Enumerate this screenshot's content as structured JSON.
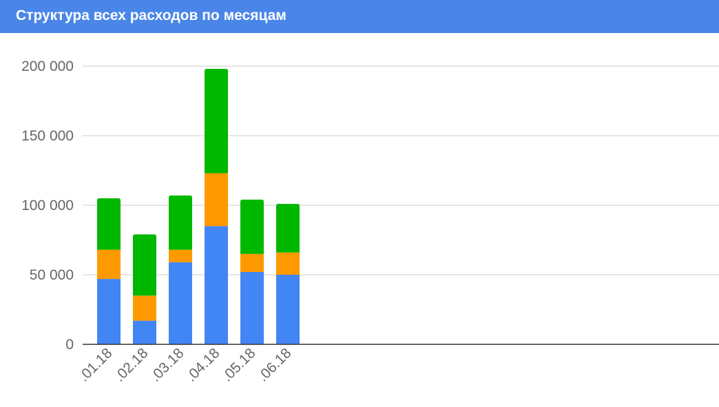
{
  "header": {
    "title": "Структура всех расходов по месяцам"
  },
  "colors": {
    "header_bg": "#4a86e8",
    "series": [
      "#4285f4",
      "#ff9900",
      "#00b800"
    ],
    "grid": "#cccccc",
    "axis": "#333333",
    "tick_text": "#666666"
  },
  "chart_data": {
    "type": "bar",
    "stacked": true,
    "title": "Структура всех расходов по месяцам",
    "categories": [
      ".01.18",
      ".02.18",
      ".03.18",
      ".04.18",
      ".05.18",
      ".06.18"
    ],
    "series": [
      {
        "values": [
          47000,
          17000,
          59000,
          85000,
          52000,
          50000
        ]
      },
      {
        "values": [
          21000,
          18000,
          9000,
          38000,
          13000,
          16000
        ]
      },
      {
        "values": [
          37000,
          44000,
          39000,
          75000,
          39000,
          35000
        ]
      }
    ],
    "ylim": [
      0,
      200000
    ],
    "yticks": [
      0,
      50000,
      100000,
      150000,
      200000
    ],
    "ytick_labels": [
      "0",
      "50 000",
      "100 000",
      "150 000",
      "200 000"
    ],
    "grid": true,
    "legend": "none",
    "xlabel": "",
    "ylabel": ""
  }
}
